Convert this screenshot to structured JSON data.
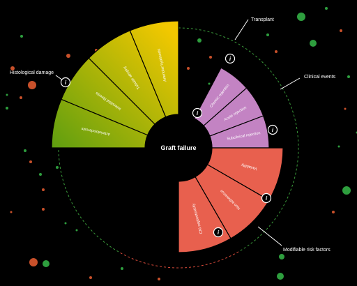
{
  "center": {
    "label": "Graft failure"
  },
  "colors": {
    "background": "#000000",
    "histological_dark": "#5e9e10",
    "histological_light": "#f2c800",
    "clinical": "#c383c3",
    "modifiable": "#e8604e",
    "transplant_arc": "#3a9a3a",
    "modifiable_arc": "#d84a3a",
    "dot_green": "#2e9e3e",
    "dot_red": "#c8502a"
  },
  "groups": [
    {
      "id": "histological",
      "label": "Histological damage",
      "segments": [
        {
          "label": "Arteriolosclerosis"
        },
        {
          "label": "Interstitial fibrosis"
        },
        {
          "label": "Tubular atrophy"
        },
        {
          "label": "Arteriolar hyalinosis"
        }
      ]
    },
    {
      "id": "clinical",
      "label": "Clinical events",
      "segments": [
        {
          "label": "Chronic rejection"
        },
        {
          "label": "Acute rejection"
        },
        {
          "label": "Subclinical rejection"
        }
      ]
    },
    {
      "id": "modifiable",
      "label": "Modifiable risk factors",
      "segments": [
        {
          "label": "Variability"
        },
        {
          "label": "Non-adherence"
        },
        {
          "label": "CNI nephrotoxicity"
        }
      ]
    }
  ],
  "outer_labels": {
    "transplant": "Transplant",
    "histological": "Histological damage",
    "clinical": "Clinical events",
    "modifiable": "Modifiable risk factors"
  },
  "info_icon_glyph": "i"
}
